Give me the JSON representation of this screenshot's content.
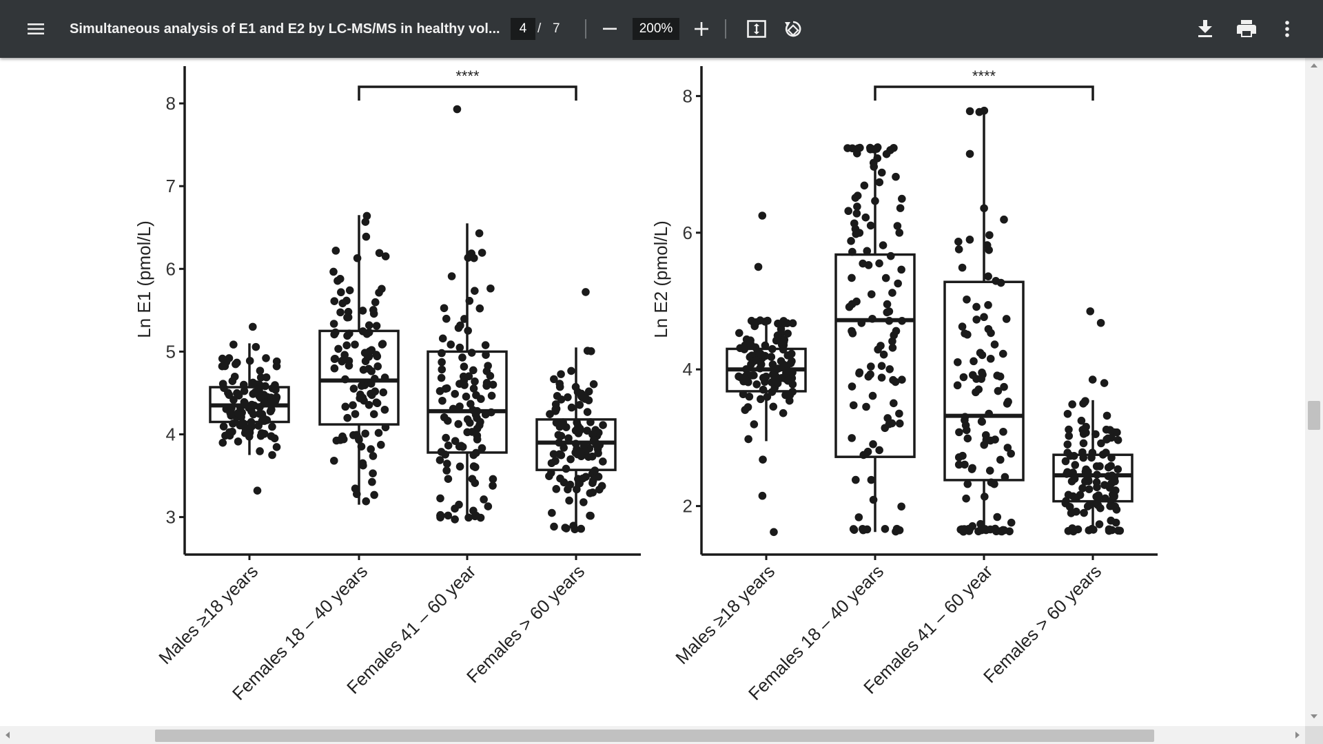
{
  "toolbar": {
    "menu_icon": "hamburger-menu-icon",
    "document_title": "Simultaneous analysis of E1 and E2 by LC-MS/MS in healthy vol...",
    "current_page": "4",
    "page_separator": "/",
    "total_pages": "7",
    "zoom_out_icon": "minus-icon",
    "zoom_level": "200%",
    "zoom_in_icon": "plus-icon",
    "fit_icon": "fit-to-page-icon",
    "rotate_icon": "rotate-icon",
    "download_icon": "download-icon",
    "print_icon": "print-icon",
    "more_icon": "more-vertical-icon"
  },
  "colors": {
    "toolbar_bg": "#323639",
    "plot_ink": "#1a1a1a",
    "page_bg": "#ffffff"
  },
  "chart_data": [
    {
      "type": "box",
      "title": "",
      "ylabel": "Ln E1 (pmol/L)",
      "xlabel": "",
      "ylim": [
        2.6,
        8.4
      ],
      "yticks": [
        "3",
        "4",
        "5",
        "6",
        "7",
        "8"
      ],
      "categories": [
        "Males ≥18 years",
        "Females 18 – 40 years",
        "Females 41 – 60 year",
        "Females > 60 years"
      ],
      "boxes": [
        {
          "category": "Males ≥18 years",
          "whisker_low": 3.75,
          "q1": 4.15,
          "median": 4.35,
          "q3": 4.57,
          "whisker_high": 5.1
        },
        {
          "category": "Females 18 – 40 years",
          "whisker_low": 3.15,
          "q1": 4.12,
          "median": 4.65,
          "q3": 5.25,
          "whisker_high": 6.65
        },
        {
          "category": "Females 41 – 60 year",
          "whisker_low": 2.97,
          "q1": 3.78,
          "median": 4.28,
          "q3": 5.0,
          "whisker_high": 6.55
        },
        {
          "category": "Females > 60 years",
          "whisker_low": 2.85,
          "q1": 3.57,
          "median": 3.9,
          "q3": 4.18,
          "whisker_high": 5.05
        }
      ],
      "outliers": [
        {
          "category": "Males ≥18 years",
          "values": [
            5.3,
            3.32
          ]
        },
        {
          "category": "Females 41 – 60 year",
          "values": [
            7.93
          ]
        },
        {
          "category": "Females > 60 years",
          "values": [
            5.72
          ]
        }
      ],
      "annotation": {
        "label": "****",
        "from": "Females 18 – 40 years",
        "to": "Females > 60 years"
      }
    },
    {
      "type": "box",
      "title": "",
      "ylabel": "Ln E2 (pmol/L)",
      "xlabel": "",
      "ylim": [
        1.3,
        8.4
      ],
      "yticks": [
        "2",
        "4",
        "6",
        "8"
      ],
      "categories": [
        "Males ≥18 years",
        "Females 18 – 40 years",
        "Females 41 – 60 year",
        "Females > 60 years"
      ],
      "boxes": [
        {
          "category": "Males ≥18 years",
          "whisker_low": 2.95,
          "q1": 3.68,
          "median": 4.0,
          "q3": 4.3,
          "whisker_high": 4.72
        },
        {
          "category": "Females 18 – 40 years",
          "whisker_low": 1.62,
          "q1": 2.72,
          "median": 4.72,
          "q3": 5.68,
          "whisker_high": 7.25
        },
        {
          "category": "Females 41 – 60 year",
          "whisker_low": 1.62,
          "q1": 2.38,
          "median": 3.32,
          "q3": 5.28,
          "whisker_high": 7.8
        },
        {
          "category": "Females > 60 years",
          "whisker_low": 1.62,
          "q1": 2.07,
          "median": 2.45,
          "q3": 2.75,
          "whisker_high": 3.55
        }
      ],
      "outliers": [
        {
          "category": "Males ≥18 years",
          "values": [
            6.25,
            5.5,
            2.68,
            2.15,
            1.62
          ]
        },
        {
          "category": "Females > 60 years",
          "values": [
            4.85,
            4.68,
            3.85,
            3.8
          ]
        }
      ],
      "annotation": {
        "label": "****",
        "from": "Females 18 – 40 years",
        "to": "Females > 60 years"
      }
    }
  ]
}
